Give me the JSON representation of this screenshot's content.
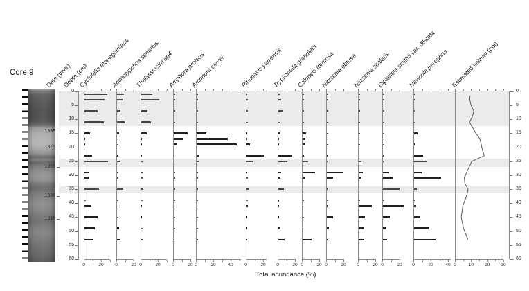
{
  "core": {
    "label": "Core 9"
  },
  "axes": {
    "date_label": "Date (year)",
    "depth_label": "Depth (cm)",
    "x_title": "Total abundance (%)",
    "depth": {
      "min": 0,
      "max": 60,
      "step": 5,
      "tick_labels": [
        "0",
        "5",
        "10",
        "15",
        "20",
        "25",
        "30",
        "35",
        "40",
        "45",
        "50",
        "55",
        "60"
      ]
    },
    "date_ticks": [
      {
        "year": "1996",
        "depth": 14.5
      },
      {
        "year": "1976",
        "depth": 20
      },
      {
        "year": "1956",
        "depth": 27
      },
      {
        "year": "1936",
        "depth": 37.5
      },
      {
        "year": "1916",
        "depth": 45.5
      }
    ]
  },
  "colors": {
    "bar": "#1f1f1f",
    "bar_muted": "#454545",
    "band": "#ebebeb",
    "axis": "#8a8a8a",
    "curve": "#4a4a4a"
  },
  "chart_data": {
    "type": "bar",
    "orientation": "horizontal bars vs depth (stratigraphic diagram)",
    "xlabel": "Total abundance (%)",
    "ylabel": "Depth (cm)",
    "ylim": [
      0,
      60
    ],
    "sample_depths_cm": [
      1,
      3,
      7,
      11,
      15,
      17,
      19,
      23,
      25,
      29,
      31,
      35,
      39,
      41,
      45,
      49,
      53
    ],
    "shaded_depth_bands_cm": [
      [
        0,
        12.5
      ],
      [
        24,
        27
      ],
      [
        34,
        36.5
      ]
    ],
    "panels": [
      {
        "name": "Cyclotella meneghiniana",
        "xmax": 30,
        "tick_labels": [
          0,
          20
        ],
        "values": [
          26,
          23,
          15,
          22,
          6,
          1,
          1,
          9,
          27,
          5,
          5,
          17,
          0,
          8,
          15,
          12,
          10
        ]
      },
      {
        "name": "Actinotypchus senarius",
        "xmax": 20,
        "tick_labels": [
          0,
          20
        ],
        "values": [
          8,
          6,
          4,
          9,
          2,
          0,
          0,
          1.5,
          4,
          0,
          0,
          7,
          0,
          0,
          0,
          2,
          4
        ]
      },
      {
        "name": "Thalassiosira sp4",
        "xmax": 30,
        "tick_labels": [
          0,
          20
        ],
        "values": [
          13,
          21,
          7,
          11,
          6,
          1,
          1,
          1,
          0,
          0,
          0,
          2,
          0,
          1,
          1,
          0,
          0
        ]
      },
      {
        "name": "Amphora proteus",
        "xmax": 21,
        "tick_labels": [
          0,
          20
        ],
        "values": [
          0,
          0,
          0,
          0,
          16,
          10,
          4,
          1,
          1,
          0,
          0,
          0,
          0,
          0,
          0,
          0,
          1
        ]
      },
      {
        "name": "Amphora clevei",
        "xmax": 52,
        "tick_labels": [
          0,
          20,
          40
        ],
        "values": [
          0,
          0,
          0,
          0,
          11,
          36,
          46,
          2,
          3,
          0,
          0,
          0,
          0,
          0,
          0,
          0,
          0
        ]
      },
      {
        "name": "Pinunavis yarrensis",
        "xmax": 24,
        "tick_labels": [
          0,
          20
        ],
        "values": [
          1,
          0,
          0,
          0,
          1,
          1,
          4,
          21,
          8,
          1,
          0,
          3,
          0,
          1.5,
          1,
          1,
          1
        ]
      },
      {
        "name": "Tryblionella granulata",
        "xmax": 21,
        "tick_labels": [
          0,
          20
        ],
        "values": [
          0,
          3,
          5,
          0,
          2,
          1,
          1,
          16,
          10,
          3,
          2,
          6,
          1,
          1,
          1,
          2,
          7
        ]
      },
      {
        "name": "Caloneis formosa",
        "xmax": 21,
        "tick_labels": [
          0,
          20
        ],
        "values": [
          0,
          0,
          0,
          0,
          4,
          3,
          2,
          1.5,
          6,
          14,
          2,
          1,
          0,
          1,
          0,
          1,
          10
        ]
      },
      {
        "name": "Nitzschia obtusa",
        "xmax": 21,
        "tick_labels": [
          0,
          20
        ],
        "values": [
          0,
          0,
          0,
          0,
          0,
          0,
          0,
          1,
          1,
          19,
          7,
          1,
          0,
          1,
          7,
          2,
          1
        ]
      },
      {
        "name": "Nitzschia scalaris",
        "xmax": 21,
        "tick_labels": [
          0,
          20
        ],
        "values": [
          0,
          0,
          0,
          0,
          0,
          0,
          0,
          1,
          3,
          5,
          2,
          1,
          0,
          15,
          7,
          6,
          6
        ]
      },
      {
        "name": "Diploneis smithii var. dilatata",
        "xmax": 21,
        "tick_labels": [
          0,
          20
        ],
        "values": [
          0,
          0,
          0,
          0,
          0,
          0,
          0,
          0,
          1,
          7,
          11,
          19,
          0,
          24,
          8,
          3,
          5
        ]
      },
      {
        "name": "Navicula peregrina",
        "xmax": 43,
        "tick_labels": [
          0,
          20,
          40
        ],
        "values": [
          0,
          0,
          0,
          0,
          4,
          0,
          1.5,
          10,
          14,
          9,
          31,
          3,
          0,
          2,
          7,
          17,
          25
        ]
      }
    ],
    "line_panel": {
      "name": "Estimated salinity (ppt)",
      "type": "line",
      "xmax": 30,
      "tick_labels": [
        0,
        10,
        20,
        30
      ],
      "points_depth_ppt": [
        [
          1.5,
          9.3
        ],
        [
          3,
          9.2
        ],
        [
          5,
          10
        ],
        [
          7,
          11.7
        ],
        [
          9,
          10.8
        ],
        [
          11,
          9
        ],
        [
          15,
          13
        ],
        [
          17,
          15.5
        ],
        [
          19,
          16.3
        ],
        [
          21,
          17
        ],
        [
          23,
          18.2
        ],
        [
          25,
          10.4
        ],
        [
          29,
          7.2
        ],
        [
          31,
          5.8
        ],
        [
          33,
          6.2
        ],
        [
          35,
          8.2
        ],
        [
          37,
          7.4
        ],
        [
          41,
          4.9
        ],
        [
          45,
          3.9
        ],
        [
          49,
          5.3
        ],
        [
          53,
          8
        ]
      ]
    }
  }
}
